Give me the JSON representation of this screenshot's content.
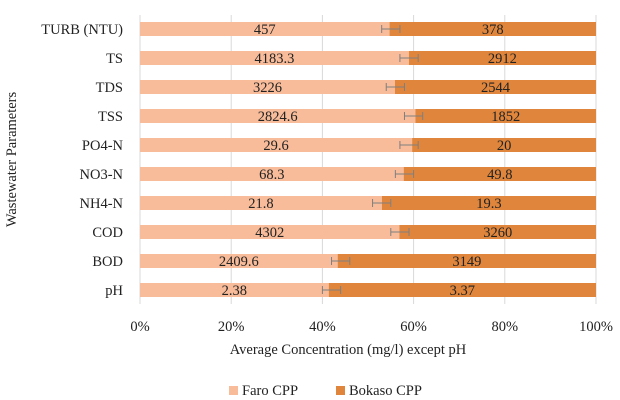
{
  "chart_data": {
    "type": "bar",
    "orientation": "horizontal",
    "stacked": "percent",
    "categories": [
      "TURB (NTU)",
      "TS",
      "TDS",
      "TSS",
      "PO4-N",
      "NO3-N",
      "NH4-N",
      "COD",
      "BOD",
      "pH"
    ],
    "series": [
      {
        "name": "Faro CPP",
        "color": "#f8bc9a",
        "values": [
          457,
          4183.3,
          3226,
          2824.6,
          29.6,
          68.3,
          21.8,
          4302,
          2409.6,
          2.38
        ],
        "labels": [
          "457",
          "4183.3",
          "3226",
          "2824.6",
          "29.6",
          "68.3",
          "21.8",
          "4302",
          "2409.6",
          "2.38"
        ],
        "error_low_pct": [
          53,
          57,
          54,
          58,
          57,
          56,
          51,
          55,
          42,
          40
        ],
        "error_high_pct": [
          57,
          61,
          58,
          62,
          61,
          60,
          55,
          59,
          46,
          44
        ]
      },
      {
        "name": "Bokaso CPP",
        "color": "#e0863c",
        "values": [
          378,
          2912,
          2544,
          1852,
          20,
          49.8,
          19.3,
          3260,
          3149,
          3.37
        ],
        "labels": [
          "378",
          "2912",
          "2544",
          "1852",
          "20",
          "49.8",
          "19.3",
          "3260",
          "3149",
          "3.37"
        ]
      }
    ],
    "xlabel": "Average Concentration (mg/l) except pH",
    "ylabel": "Wastewater Parameters",
    "xlim": [
      0,
      100
    ],
    "xticks": [
      "0%",
      "20%",
      "40%",
      "60%",
      "80%",
      "100%"
    ],
    "grid": "vertical",
    "legend": "bottom-center"
  }
}
